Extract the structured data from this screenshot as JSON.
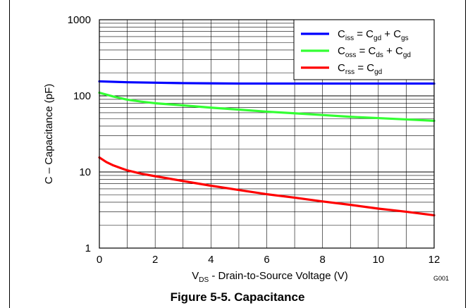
{
  "chart_data": {
    "type": "line",
    "y_scale": "log",
    "xlim": [
      0,
      12
    ],
    "ylim": [
      1,
      1000
    ],
    "x_ticks": [
      "0",
      "2",
      "4",
      "6",
      "8",
      "10",
      "12"
    ],
    "y_ticks": [
      "1",
      "10",
      "100",
      "1000"
    ],
    "xlabel": {
      "main": "V",
      "sub": "DS",
      "rest": " - Drain-to-Source Voltage (V)"
    },
    "ylabel": "C – Capacitance  (pF)",
    "figure_id": "G001",
    "caption": "Figure 5-5. Capacitance",
    "legend_position": "top-right",
    "grid": true,
    "series": [
      {
        "key": "ciss",
        "color": "#0000ff",
        "legend": {
          "a": "C",
          "a_sub": "iss",
          "b": " = C",
          "b_sub": "gd",
          "c": " + C",
          "c_sub": "gs"
        },
        "x": [
          0,
          1,
          2,
          3,
          4,
          5,
          6,
          7,
          8,
          9,
          10,
          11,
          12
        ],
        "y": [
          155,
          151,
          149,
          147,
          146,
          145,
          145,
          145,
          145,
          145,
          145,
          145,
          145
        ]
      },
      {
        "key": "coss",
        "color": "#33ff33",
        "legend": {
          "a": "C",
          "a_sub": "oss",
          "b": " = C",
          "b_sub": "ds",
          "c": " + C",
          "c_sub": "gd"
        },
        "x": [
          0,
          0.5,
          1,
          1.5,
          2,
          3,
          4,
          5,
          6,
          7,
          8,
          9,
          10,
          11,
          12
        ],
        "y": [
          110,
          98,
          89,
          84,
          80,
          75,
          70,
          66,
          62,
          59,
          56,
          53,
          51,
          49,
          47
        ]
      },
      {
        "key": "crss",
        "color": "#ff0000",
        "legend": {
          "a": "C",
          "a_sub": "rss",
          "b": " =  C",
          "b_sub": "gd",
          "c": "",
          "c_sub": ""
        },
        "x": [
          0,
          0.25,
          0.5,
          0.75,
          1,
          1.5,
          2,
          3,
          4,
          5,
          6,
          7,
          8,
          9,
          10,
          11,
          12
        ],
        "y": [
          15.5,
          13.5,
          12.2,
          11.3,
          10.5,
          9.5,
          8.8,
          7.6,
          6.6,
          5.8,
          5.1,
          4.6,
          4.1,
          3.7,
          3.3,
          3.0,
          2.7
        ]
      }
    ]
  }
}
